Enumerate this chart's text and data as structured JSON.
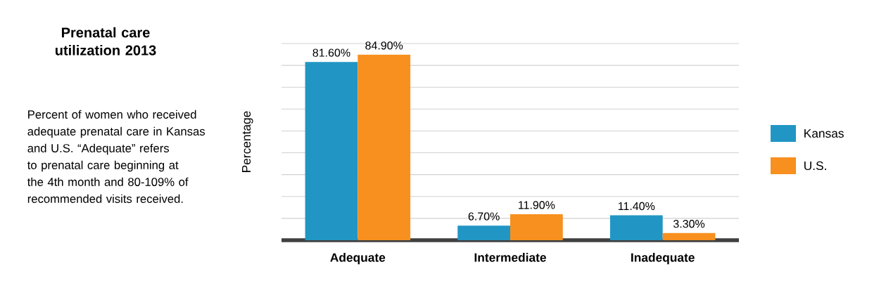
{
  "chart_data": {
    "type": "bar",
    "title": "Prenatal care utilization 2013",
    "ylabel": "Percentage",
    "annotations": [
      "Percent of women who received adequate prenatal care in Kansas and U.S. “Adequate” refers to prenatal care beginning at the 4th month and 80-109% of recommended visits received."
    ],
    "categories": [
      "Adequate",
      "Intermediate",
      "Inadequate"
    ],
    "series": [
      {
        "name": "Kansas",
        "color": "#2196c4",
        "values": [
          81.6,
          6.7,
          11.4
        ],
        "value_labels": [
          "81.60%",
          "6.70%",
          "11.40%"
        ]
      },
      {
        "name": "U.S.",
        "color": "#f7901e",
        "values": [
          84.9,
          11.9,
          3.3
        ],
        "value_labels": [
          "84.90%",
          "11.90%",
          "3.30%"
        ]
      }
    ],
    "ylim": [
      0,
      90
    ],
    "yticks": [
      {
        "value": 0,
        "label": null
      },
      {
        "value": 10,
        "label": null
      },
      {
        "value": 20,
        "label": null
      },
      {
        "value": 30,
        "label": null
      },
      {
        "value": 40,
        "label": null
      },
      {
        "value": 50,
        "label": null
      },
      {
        "value": 60,
        "label": null
      },
      {
        "value": 70,
        "label": null
      },
      {
        "value": 80,
        "label": null
      },
      {
        "value": 90,
        "label": null
      }
    ],
    "grid": "y",
    "legend": "right",
    "tick_labels": "x"
  }
}
